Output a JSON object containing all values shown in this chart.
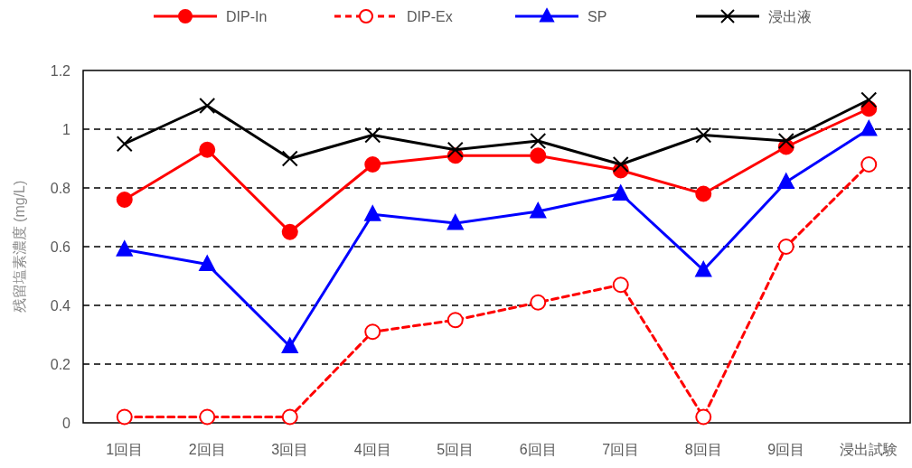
{
  "chart_data": {
    "type": "line",
    "ylabel": "残留塩素濃度 (mg/L)",
    "categories": [
      "1回目",
      "2回目",
      "3回目",
      "4回目",
      "5回目",
      "6回目",
      "7回目",
      "8回目",
      "9回目",
      "浸出試験"
    ],
    "series": [
      {
        "name": "DIP-In",
        "color": "#ff0000",
        "marker": "circle",
        "line_style": "solid",
        "values": [
          0.76,
          0.93,
          0.65,
          0.88,
          0.91,
          0.91,
          0.86,
          0.78,
          0.94,
          1.07
        ]
      },
      {
        "name": "DIP-Ex",
        "color": "#ff0000",
        "marker": "circle",
        "line_style": "dashed",
        "values": [
          0.02,
          0.02,
          0.02,
          0.31,
          0.35,
          0.41,
          0.47,
          0.02,
          0.6,
          0.88
        ]
      },
      {
        "name": "SP",
        "color": "#0000ff",
        "marker": "triangle",
        "line_style": "solid",
        "values": [
          0.59,
          0.54,
          0.26,
          0.71,
          0.68,
          0.72,
          0.78,
          0.52,
          0.82,
          1.0
        ]
      },
      {
        "name": "浸出液",
        "color": "#000000",
        "marker": "cross",
        "line_style": "solid",
        "values": [
          0.95,
          1.08,
          0.9,
          0.98,
          0.93,
          0.96,
          0.88,
          0.98,
          0.96,
          1.1
        ]
      }
    ],
    "ylim": [
      0,
      1.2
    ],
    "yticks": [
      0,
      0.2,
      0.4,
      0.6,
      0.8,
      1,
      1.2
    ],
    "grid": "y",
    "legend": "top"
  }
}
